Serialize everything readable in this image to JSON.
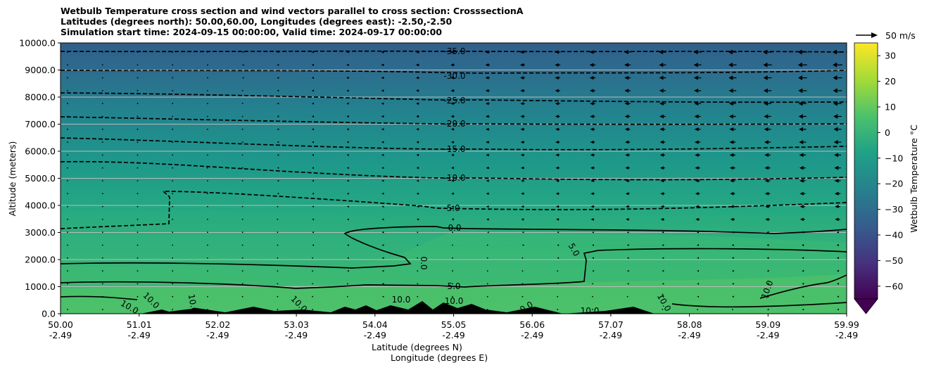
{
  "title_lines": [
    "Wetbulb Temperature cross section and wind vectors parallel to cross section: CrosssectionA",
    "Latitudes (degrees north): 50.00,60.00, Longitudes (degrees east): -2.50,-2.50",
    "Simulation start time: 2024-09-15 00:00:00, Valid time: 2024-09-17 00:00:00"
  ],
  "chart_data": {
    "type": "heatmap",
    "ylabel": "Altitude (meters)",
    "xlabel_line1": "Latitude (degrees N)",
    "xlabel_line2": "Longitude (degrees E)",
    "ylim": [
      0,
      10000
    ],
    "y_ticks": [
      "0.0",
      "1000.0",
      "2000.0",
      "3000.0",
      "4000.0",
      "5000.0",
      "6000.0",
      "7000.0",
      "8000.0",
      "9000.0",
      "10000.0"
    ],
    "x_ticks_lat": [
      "50.00",
      "51.01",
      "52.02",
      "53.03",
      "54.04",
      "55.05",
      "56.06",
      "57.07",
      "58.08",
      "59.09",
      "59.99"
    ],
    "x_ticks_lon": [
      "-2.49",
      "-2.49",
      "-2.49",
      "-2.49",
      "-2.49",
      "-2.49",
      "-2.49",
      "-2.49",
      "-2.49",
      "-2.49",
      "-2.49"
    ],
    "grid": "horizontal",
    "colorbar": {
      "label": "Wetbulb Temperature °C",
      "range": [
        -65,
        35
      ],
      "ticks": [
        "30",
        "20",
        "10",
        "0",
        "−10",
        "−20",
        "−30",
        "−40",
        "−50",
        "−60"
      ],
      "colors": [
        "#440154",
        "#46327e",
        "#365c8d",
        "#277f8e",
        "#1fa187",
        "#4ac16d",
        "#a0da39",
        "#fde725"
      ],
      "extend": "min"
    },
    "quiver_key": "50 m/s",
    "contour_labels_dashed": [
      "-35.0",
      "-30.0",
      "-25.0",
      "-20.0",
      "-15.0",
      "-10.0",
      "-5.0"
    ],
    "contour_labels_solid": [
      "0.0",
      "5.0",
      "5.0",
      "10.0",
      "10.0",
      "10.0",
      "10.0",
      "10.0",
      "10.0",
      "10.0",
      "10.0",
      "10.0",
      "0.0",
      "0.0"
    ]
  }
}
